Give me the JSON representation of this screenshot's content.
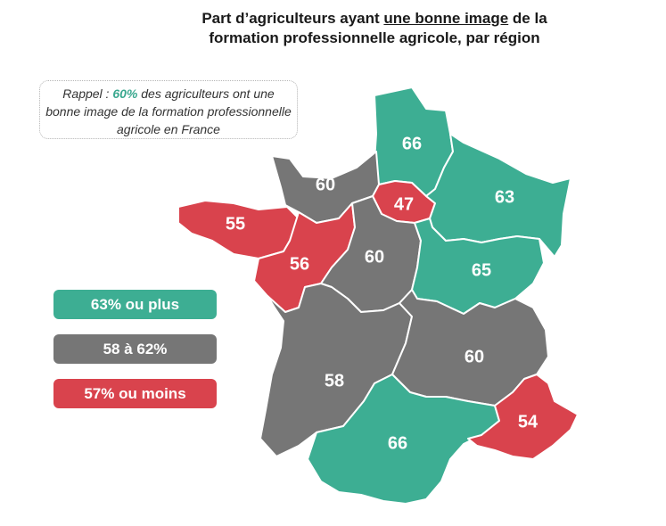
{
  "title": {
    "line1_before": "Part d’agriculteurs ayant ",
    "line1_underlined": "une bonne image",
    "line1_after": " de la",
    "line2": "formation professionnelle agricole, par région"
  },
  "rappel": {
    "prefix": "Rappel : ",
    "percent": "60%",
    "suffix": " des agriculteurs ont une bonne image de la formation professionnelle agricole en France"
  },
  "colors": {
    "high": "#3dae93",
    "mid": "#767676",
    "low": "#d9434d"
  },
  "legend": [
    {
      "label": "63% ou plus",
      "class": "high"
    },
    {
      "label": "58 à 62%",
      "class": "mid"
    },
    {
      "label": "57% ou moins",
      "class": "low"
    }
  ],
  "regions": [
    {
      "value": 66,
      "class": "high"
    },
    {
      "value": 60,
      "class": "mid"
    },
    {
      "value": 47,
      "class": "low"
    },
    {
      "value": 63,
      "class": "high"
    },
    {
      "value": 55,
      "class": "low"
    },
    {
      "value": 56,
      "class": "low"
    },
    {
      "value": 60,
      "class": "mid"
    },
    {
      "value": 65,
      "class": "high"
    },
    {
      "value": 58,
      "class": "mid"
    },
    {
      "value": 60,
      "class": "mid"
    },
    {
      "value": 66,
      "class": "high"
    },
    {
      "value": 54,
      "class": "low"
    }
  ]
}
